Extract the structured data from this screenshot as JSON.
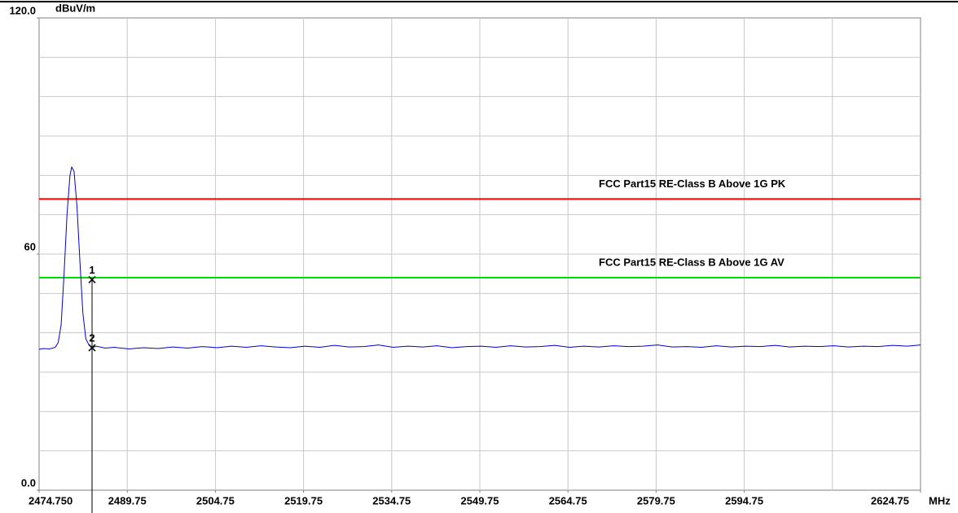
{
  "chart_data": {
    "type": "line",
    "y_unit": "dBuV/m",
    "x_unit": "MHz",
    "xlim": [
      2474.75,
      2624.75
    ],
    "ylim": [
      0,
      120
    ],
    "yticks": [
      {
        "value": 0,
        "label": "0.0"
      },
      60,
      {
        "value": 120,
        "label": "120.0"
      }
    ],
    "ygrid": [
      10,
      20,
      30,
      40,
      50,
      60,
      70,
      80,
      90,
      100,
      110
    ],
    "xticks": [
      {
        "value": 2474.75,
        "label": "2474.750"
      },
      2489.75,
      2504.75,
      2519.75,
      2534.75,
      2549.75,
      2564.75,
      2579.75,
      2594.75,
      2624.75
    ],
    "xgrid": [
      2489.75,
      2504.75,
      2519.75,
      2534.75,
      2549.75,
      2564.75,
      2579.75,
      2594.75,
      2609.75
    ],
    "grid": true,
    "series": [
      {
        "color": "#0000cc",
        "x": [
          2474.75,
          2475.5,
          2476.5,
          2477.5,
          2478.0,
          2478.5,
          2479.0,
          2479.5,
          2480.0,
          2480.3,
          2480.7,
          2481.2,
          2481.7,
          2482.2,
          2482.7,
          2483.2,
          2483.76,
          2484.5,
          2486.0,
          2487.5,
          2490.0,
          2492.5,
          2495.0,
          2497.5,
          2500.0,
          2502.5,
          2505.0,
          2507.5,
          2510.0,
          2512.5,
          2515.0,
          2517.5,
          2520.0,
          2522.5,
          2525.0,
          2527.5,
          2530.0,
          2532.5,
          2535.0,
          2537.5,
          2540.0,
          2542.5,
          2545.0,
          2547.5,
          2550.0,
          2552.5,
          2555.0,
          2557.5,
          2560.0,
          2562.5,
          2565.0,
          2567.5,
          2570.0,
          2572.5,
          2575.0,
          2577.5,
          2580.0,
          2582.5,
          2585.0,
          2587.5,
          2590.0,
          2592.5,
          2595.0,
          2597.5,
          2600.0,
          2602.5,
          2605.0,
          2607.5,
          2610.0,
          2612.5,
          2615.0,
          2617.5,
          2620.0,
          2622.5,
          2624.75
        ],
        "values": [
          35.8,
          36.0,
          35.9,
          36.3,
          37.5,
          42,
          55,
          70,
          80,
          82.1,
          81,
          72,
          58,
          45,
          38.5,
          37,
          36.2,
          36.6,
          36.1,
          36.3,
          35.9,
          36.2,
          36.0,
          36.4,
          36.1,
          36.5,
          36.2,
          36.6,
          36.3,
          36.7,
          36.4,
          36.2,
          36.6,
          36.3,
          36.8,
          36.4,
          36.5,
          36.9,
          36.3,
          36.6,
          36.4,
          36.7,
          36.2,
          36.5,
          36.6,
          36.3,
          36.7,
          36.4,
          36.5,
          36.8,
          36.3,
          36.6,
          36.4,
          36.7,
          36.5,
          36.6,
          36.9,
          36.4,
          36.5,
          36.3,
          36.7,
          36.4,
          36.6,
          36.5,
          36.8,
          36.4,
          36.6,
          36.5,
          36.7,
          36.4,
          36.6,
          36.5,
          36.8,
          36.6,
          36.9
        ]
      }
    ],
    "limits": [
      {
        "name": "FCC Part15 RE-Class B Above 1G PK",
        "color": "#ff0000",
        "value": 74
      },
      {
        "name": "FCC Part15 RE-Class B Above 1G AV",
        "color": "#00dd00",
        "value": 54
      }
    ],
    "markers": [
      {
        "label": "1",
        "x": 2483.76,
        "y": 53.5
      },
      {
        "label": "2",
        "x": 2483.76,
        "y": 36.2
      }
    ]
  }
}
